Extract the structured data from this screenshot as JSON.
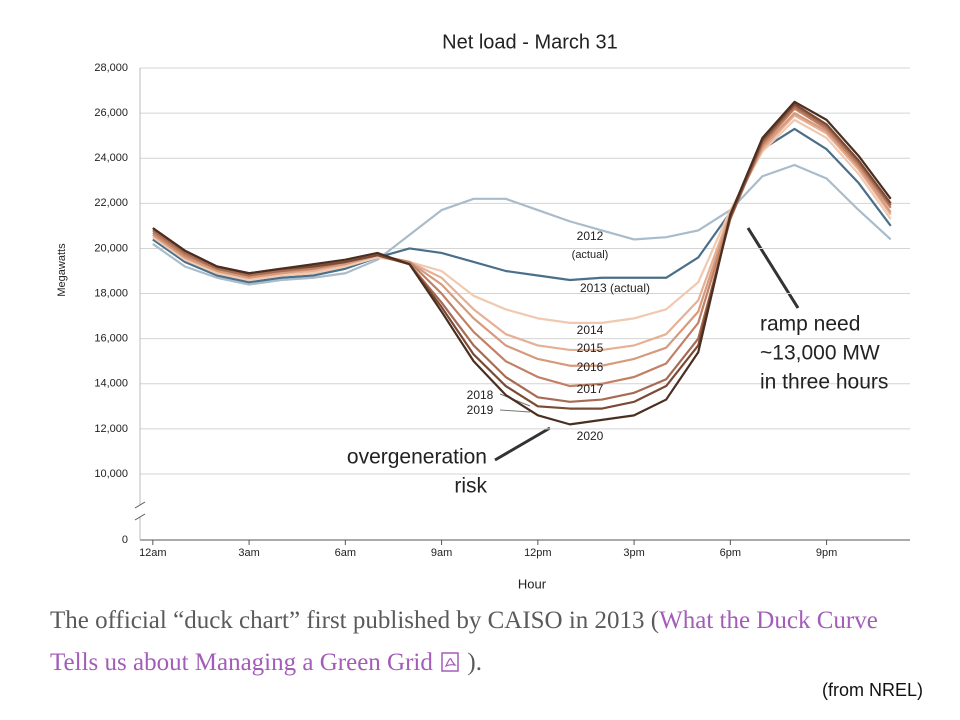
{
  "chart_data": {
    "type": "line",
    "title": "Net load - March 31",
    "y_label": "Megawatts",
    "x_label": "Hour",
    "x": [
      0,
      1,
      2,
      3,
      4,
      5,
      6,
      7,
      8,
      9,
      10,
      11,
      12,
      13,
      14,
      15,
      16,
      17,
      18,
      19,
      20,
      21,
      22,
      23
    ],
    "xlim": [
      -0.4,
      23.6
    ],
    "xticks": [
      {
        "value": 0,
        "label": "12am"
      },
      {
        "value": 3,
        "label": "3am"
      },
      {
        "value": 6,
        "label": "6am"
      },
      {
        "value": 9,
        "label": "9am"
      },
      {
        "value": 12,
        "label": "12pm"
      },
      {
        "value": 15,
        "label": "3pm"
      },
      {
        "value": 18,
        "label": "6pm"
      },
      {
        "value": 21,
        "label": "9pm"
      }
    ],
    "ylim": [
      0,
      28000
    ],
    "yticks": [
      0,
      {
        "value": 10000,
        "label": "10,000"
      },
      {
        "value": 12000,
        "label": "12,000"
      },
      {
        "value": 14000,
        "label": "14,000"
      },
      {
        "value": 16000,
        "label": "16,000"
      },
      {
        "value": 18000,
        "label": "18,000"
      },
      {
        "value": 20000,
        "label": "20,000"
      },
      {
        "value": 22000,
        "label": "22,000"
      },
      {
        "value": 24000,
        "label": "24,000"
      },
      {
        "value": 26000,
        "label": "26,000"
      },
      {
        "value": 28000,
        "label": "28,000"
      }
    ],
    "axis_break": true,
    "grid": true,
    "series": [
      {
        "name": "2012",
        "note": "(actual)",
        "color": "#a9bccb",
        "values": [
          20200,
          19200,
          18700,
          18400,
          18600,
          18700,
          18900,
          19500,
          20600,
          21700,
          22200,
          22200,
          21700,
          21200,
          20800,
          20400,
          20500,
          20800,
          21700,
          23200,
          23700,
          23100,
          21700,
          20400
        ]
      },
      {
        "name": "2013 (actual)",
        "color": "#4a6f8a",
        "values": [
          20400,
          19400,
          18800,
          18500,
          18700,
          18800,
          19100,
          19600,
          20000,
          19800,
          19400,
          19000,
          18800,
          18600,
          18700,
          18700,
          18700,
          19600,
          21600,
          24400,
          25300,
          24400,
          22900,
          21000
        ]
      },
      {
        "name": "2014",
        "color": "#f0c9b0",
        "values": [
          20500,
          19500,
          18900,
          18600,
          18800,
          18900,
          19200,
          19600,
          19400,
          19000,
          17900,
          17300,
          16900,
          16700,
          16700,
          16900,
          17300,
          18500,
          21700,
          24300,
          25700,
          24900,
          23300,
          21300
        ]
      },
      {
        "name": "2015",
        "color": "#e5b094",
        "values": [
          20600,
          19600,
          19000,
          18700,
          18900,
          19000,
          19300,
          19700,
          19400,
          18700,
          17300,
          16200,
          15700,
          15500,
          15500,
          15700,
          16200,
          17700,
          21600,
          24400,
          25900,
          25100,
          23500,
          21500
        ]
      },
      {
        "name": "2016",
        "color": "#d69a7c",
        "values": [
          20600,
          19600,
          19000,
          18700,
          18900,
          19100,
          19300,
          19700,
          19400,
          18400,
          16900,
          15700,
          15100,
          14800,
          14800,
          15100,
          15600,
          17200,
          21500,
          24500,
          26000,
          25200,
          23600,
          21600
        ]
      },
      {
        "name": "2017",
        "color": "#c28165",
        "values": [
          20700,
          19700,
          19100,
          18800,
          19000,
          19100,
          19400,
          19700,
          19400,
          18000,
          16300,
          15000,
          14300,
          13900,
          14000,
          14300,
          14900,
          16700,
          21400,
          24600,
          26200,
          25300,
          23700,
          21800
        ]
      },
      {
        "name": "2018",
        "color": "#a66b52",
        "values": [
          20800,
          19800,
          19100,
          18800,
          19000,
          19200,
          19400,
          19700,
          19300,
          17600,
          15700,
          14300,
          13400,
          13200,
          13300,
          13600,
          14200,
          16000,
          21300,
          24700,
          26300,
          25400,
          23800,
          21900
        ]
      },
      {
        "name": "2019",
        "color": "#7a4a35",
        "values": [
          20900,
          19900,
          19200,
          18900,
          19100,
          19200,
          19400,
          19700,
          19300,
          17400,
          15300,
          13900,
          13000,
          12900,
          12900,
          13200,
          13900,
          15700,
          21400,
          24800,
          26400,
          25500,
          23900,
          22000
        ]
      },
      {
        "name": "2020",
        "color": "#4a2e20",
        "values": [
          20900,
          19900,
          19200,
          18900,
          19100,
          19300,
          19500,
          19800,
          19300,
          17200,
          15000,
          13500,
          12600,
          12200,
          12400,
          12600,
          13300,
          15400,
          21500,
          24900,
          26500,
          25700,
          24100,
          22200
        ]
      }
    ],
    "annotations": [
      {
        "lines": [
          "ramp need",
          "~13,000 MW",
          "in three hours"
        ]
      },
      {
        "lines": [
          "overgeneration",
          "risk"
        ]
      }
    ]
  },
  "caption": {
    "text": "The official “duck chart” first published by CAISO in 2013 (",
    "link": "What the Duck Curve Tells us about Managing a Green Grid",
    "after": " )."
  },
  "source": "(from NREL)"
}
